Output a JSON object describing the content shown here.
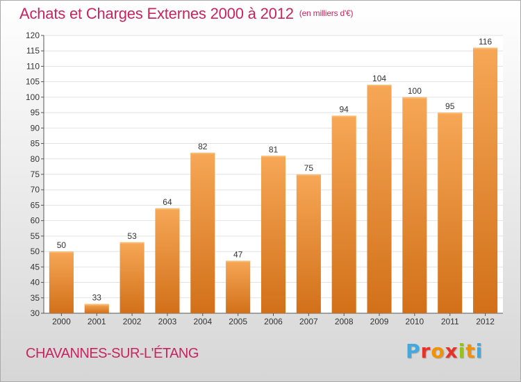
{
  "header": {
    "title": "Achats et Charges Externes 2000 à 2012",
    "unit": "(en milliers d'€)"
  },
  "footer": {
    "commune": "CHAVANNES-SUR-L'ÉTANG",
    "logo_letters": [
      "P",
      "r",
      "o",
      "x",
      "i",
      "t",
      "i"
    ]
  },
  "colors": {
    "title": "#C8245E",
    "bar_light": "#F6A756",
    "bar_dark": "#D27019",
    "grid": "#e2e2e2",
    "logo": [
      "#3fa9e0",
      "#e6332a",
      "#f39200",
      "#e6332a",
      "#95c11f",
      "#f39200",
      "#3fa9e0"
    ]
  },
  "chart_data": {
    "type": "bar",
    "title": "Achats et Charges Externes 2000 à 2012",
    "subtitle": "(en milliers d'€)",
    "xlabel": "",
    "ylabel": "",
    "categories": [
      "2000",
      "2001",
      "2002",
      "2003",
      "2004",
      "2005",
      "2006",
      "2007",
      "2008",
      "2009",
      "2010",
      "2011",
      "2012"
    ],
    "values": [
      50,
      33,
      53,
      64,
      82,
      47,
      81,
      75,
      94,
      104,
      100,
      95,
      116
    ],
    "ylim": [
      30,
      120
    ],
    "yticks": [
      30,
      35,
      40,
      45,
      50,
      55,
      60,
      65,
      70,
      75,
      80,
      85,
      90,
      95,
      100,
      105,
      110,
      115,
      120
    ],
    "grid": true,
    "legend": "none"
  }
}
